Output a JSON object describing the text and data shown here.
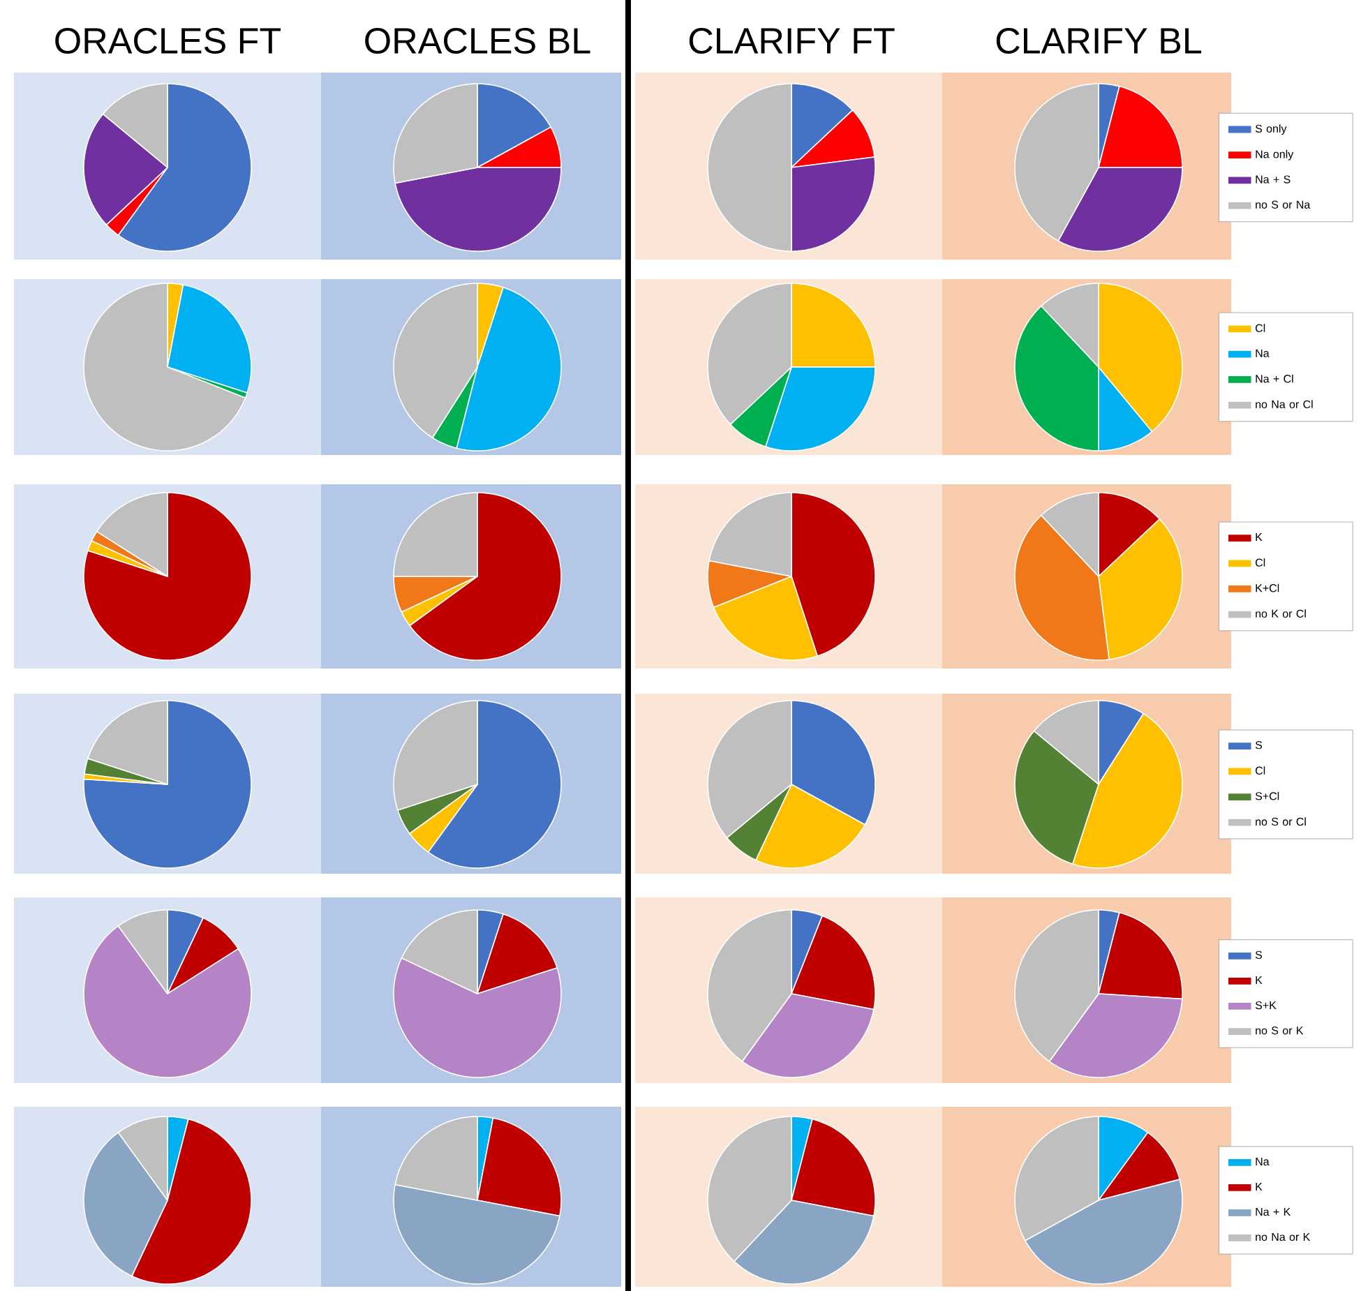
{
  "chart_data": [
    {
      "type": "pie",
      "title": "ORACLES FT",
      "categories": [
        null,
        null,
        null,
        null
      ],
      "values": [
        60,
        3,
        23,
        14
      ],
      "colors": [
        "#4472c4",
        "#ff0000",
        "#7030a0",
        "#bfbfbf"
      ]
    },
    {
      "type": "pie",
      "title": "ORACLES BL",
      "categories": [
        null,
        null,
        null,
        null
      ],
      "values": [
        17,
        8,
        47,
        28
      ],
      "colors": [
        "#4472c4",
        "#ff0000",
        "#7030a0",
        "#bfbfbf"
      ]
    },
    {
      "type": "pie",
      "title": "CLARIFY FT",
      "categories": [
        null,
        null,
        null,
        null
      ],
      "values": [
        13,
        10,
        27,
        50
      ],
      "colors": [
        "#4472c4",
        "#ff0000",
        "#7030a0",
        "#bfbfbf"
      ]
    },
    {
      "type": "pie",
      "title": "CLARIFY BL",
      "categories": [
        "S only",
        "Na only",
        "Na + S",
        "no S or Na"
      ],
      "values": [
        4,
        21,
        33,
        42
      ],
      "colors": [
        "#4472c4",
        "#ff0000",
        "#7030a0",
        "#bfbfbf"
      ],
      "legend": "right"
    },
    {
      "type": "pie",
      "categories": [
        null,
        null,
        null,
        null
      ],
      "values": [
        3,
        27,
        1,
        69
      ],
      "colors": [
        "#ffc000",
        "#00b0f0",
        "#00b050",
        "#bfbfbf"
      ]
    },
    {
      "type": "pie",
      "categories": [
        null,
        null,
        null,
        null
      ],
      "values": [
        5,
        49,
        5,
        41
      ],
      "colors": [
        "#ffc000",
        "#00b0f0",
        "#00b050",
        "#bfbfbf"
      ]
    },
    {
      "type": "pie",
      "categories": [
        null,
        null,
        null,
        null
      ],
      "values": [
        25,
        30,
        8,
        37
      ],
      "colors": [
        "#ffc000",
        "#00b0f0",
        "#00b050",
        "#bfbfbf"
      ]
    },
    {
      "type": "pie",
      "categories": [
        "Cl",
        "Na",
        "Na + Cl",
        "no Na or Cl"
      ],
      "values": [
        39,
        11,
        38,
        12
      ],
      "colors": [
        "#ffc000",
        "#00b0f0",
        "#00b050",
        "#bfbfbf"
      ],
      "legend": "right"
    },
    {
      "type": "pie",
      "categories": [
        null,
        null,
        null,
        null
      ],
      "values": [
        80,
        2,
        2,
        16
      ],
      "colors": [
        "#c00000",
        "#ffc000",
        "#f07818",
        "#bfbfbf"
      ]
    },
    {
      "type": "pie",
      "categories": [
        null,
        null,
        null,
        null
      ],
      "values": [
        65,
        3,
        7,
        25
      ],
      "colors": [
        "#c00000",
        "#ffc000",
        "#f07818",
        "#bfbfbf"
      ]
    },
    {
      "type": "pie",
      "categories": [
        null,
        null,
        null,
        null
      ],
      "values": [
        45,
        24,
        9,
        22
      ],
      "colors": [
        "#c00000",
        "#ffc000",
        "#f07818",
        "#bfbfbf"
      ]
    },
    {
      "type": "pie",
      "categories": [
        "K",
        "Cl",
        "K+Cl",
        "no K or Cl"
      ],
      "values": [
        13,
        35,
        40,
        12
      ],
      "colors": [
        "#c00000",
        "#ffc000",
        "#f07818",
        "#bfbfbf"
      ],
      "legend": "right"
    },
    {
      "type": "pie",
      "categories": [
        null,
        null,
        null,
        null
      ],
      "values": [
        76,
        1,
        3,
        20
      ],
      "colors": [
        "#4472c4",
        "#ffc000",
        "#548235",
        "#bfbfbf"
      ]
    },
    {
      "type": "pie",
      "categories": [
        null,
        null,
        null,
        null
      ],
      "values": [
        60,
        5,
        5,
        30
      ],
      "colors": [
        "#4472c4",
        "#ffc000",
        "#548235",
        "#bfbfbf"
      ]
    },
    {
      "type": "pie",
      "categories": [
        null,
        null,
        null,
        null
      ],
      "values": [
        33,
        24,
        7,
        36
      ],
      "colors": [
        "#4472c4",
        "#ffc000",
        "#548235",
        "#bfbfbf"
      ]
    },
    {
      "type": "pie",
      "categories": [
        "S",
        "Cl",
        "S+Cl",
        "no S or Cl"
      ],
      "values": [
        9,
        46,
        31,
        14
      ],
      "colors": [
        "#4472c4",
        "#ffc000",
        "#548235",
        "#bfbfbf"
      ],
      "legend": "right"
    },
    {
      "type": "pie",
      "categories": [
        null,
        null,
        null,
        null
      ],
      "values": [
        7,
        9,
        74,
        10
      ],
      "colors": [
        "#4472c4",
        "#c00000",
        "#b584c6",
        "#bfbfbf"
      ]
    },
    {
      "type": "pie",
      "categories": [
        null,
        null,
        null,
        null
      ],
      "values": [
        5,
        15,
        62,
        18
      ],
      "colors": [
        "#4472c4",
        "#c00000",
        "#b584c6",
        "#bfbfbf"
      ]
    },
    {
      "type": "pie",
      "categories": [
        null,
        null,
        null,
        null
      ],
      "values": [
        6,
        22,
        32,
        40
      ],
      "colors": [
        "#4472c4",
        "#c00000",
        "#b584c6",
        "#bfbfbf"
      ]
    },
    {
      "type": "pie",
      "categories": [
        "S",
        "K",
        "S+K",
        "no S or K"
      ],
      "values": [
        4,
        22,
        34,
        40
      ],
      "colors": [
        "#4472c4",
        "#c00000",
        "#b584c6",
        "#bfbfbf"
      ],
      "legend": "right"
    },
    {
      "type": "pie",
      "categories": [
        null,
        null,
        null,
        null
      ],
      "values": [
        4,
        53,
        33,
        10
      ],
      "colors": [
        "#00b0f0",
        "#c00000",
        "#8aa4c4",
        "#bfbfbf"
      ]
    },
    {
      "type": "pie",
      "categories": [
        null,
        null,
        null,
        null
      ],
      "values": [
        3,
        25,
        50,
        22
      ],
      "colors": [
        "#00b0f0",
        "#c00000",
        "#8aa4c4",
        "#bfbfbf"
      ]
    },
    {
      "type": "pie",
      "categories": [
        null,
        null,
        null,
        null
      ],
      "values": [
        4,
        24,
        34,
        38
      ],
      "colors": [
        "#00b0f0",
        "#c00000",
        "#8aa4c4",
        "#bfbfbf"
      ]
    },
    {
      "type": "pie",
      "categories": [
        "Na",
        "K",
        "Na + K",
        "no Na or K"
      ],
      "values": [
        10,
        11,
        46,
        33
      ],
      "colors": [
        "#00b0f0",
        "#c00000",
        "#8aa4c4",
        "#bfbfbf"
      ],
      "legend": "right"
    }
  ]
}
